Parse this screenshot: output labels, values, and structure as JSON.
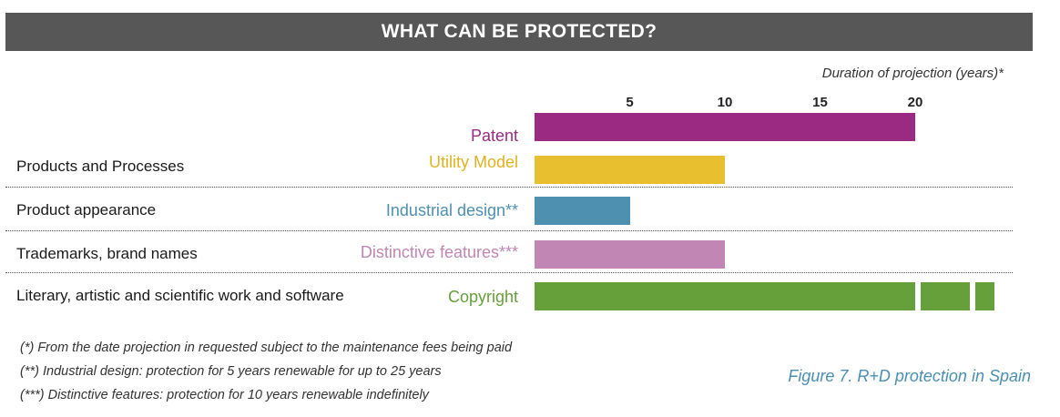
{
  "header": {
    "title": "WHAT CAN BE PROTECTED?"
  },
  "categories": [
    {
      "label": "Products and Processes"
    },
    {
      "label": "Product appearance"
    },
    {
      "label": "Trademarks, brand names"
    },
    {
      "label": "Literary, artistic and scientific work and software"
    }
  ],
  "footnotes": [
    "(*) From the date projection in requested subject to the maintenance fees being paid",
    "(**) Industrial design: protection for 5 years renewable for up to 25 years",
    "(***) Distinctive features: protection for 10 years renewable indefinitely"
  ],
  "caption": "Figure 7. R+D protection in Spain",
  "chart_data": {
    "type": "bar",
    "orientation": "horizontal",
    "title": "WHAT CAN BE PROTECTED?",
    "axis_title": "Duration of projection (years)*",
    "ticks": [
      "5",
      "10",
      "15",
      "20"
    ],
    "tick_values": [
      5,
      10,
      15,
      20
    ],
    "xlim": [
      0,
      25
    ],
    "series": [
      {
        "name": "Patent",
        "segments": [
          20
        ],
        "color": "#9b2a82"
      },
      {
        "name": "Utility Model",
        "segments": [
          10
        ],
        "color": "#e8bf2f"
      },
      {
        "name": "Industrial design**",
        "segments": [
          5
        ],
        "color": "#4e90b0"
      },
      {
        "name": "Distinctive features***",
        "segments": [
          10
        ],
        "color": "#c186b3"
      },
      {
        "name": "Copyright",
        "segments": [
          20,
          2.6,
          1.0
        ],
        "color": "#66a03a"
      }
    ]
  }
}
